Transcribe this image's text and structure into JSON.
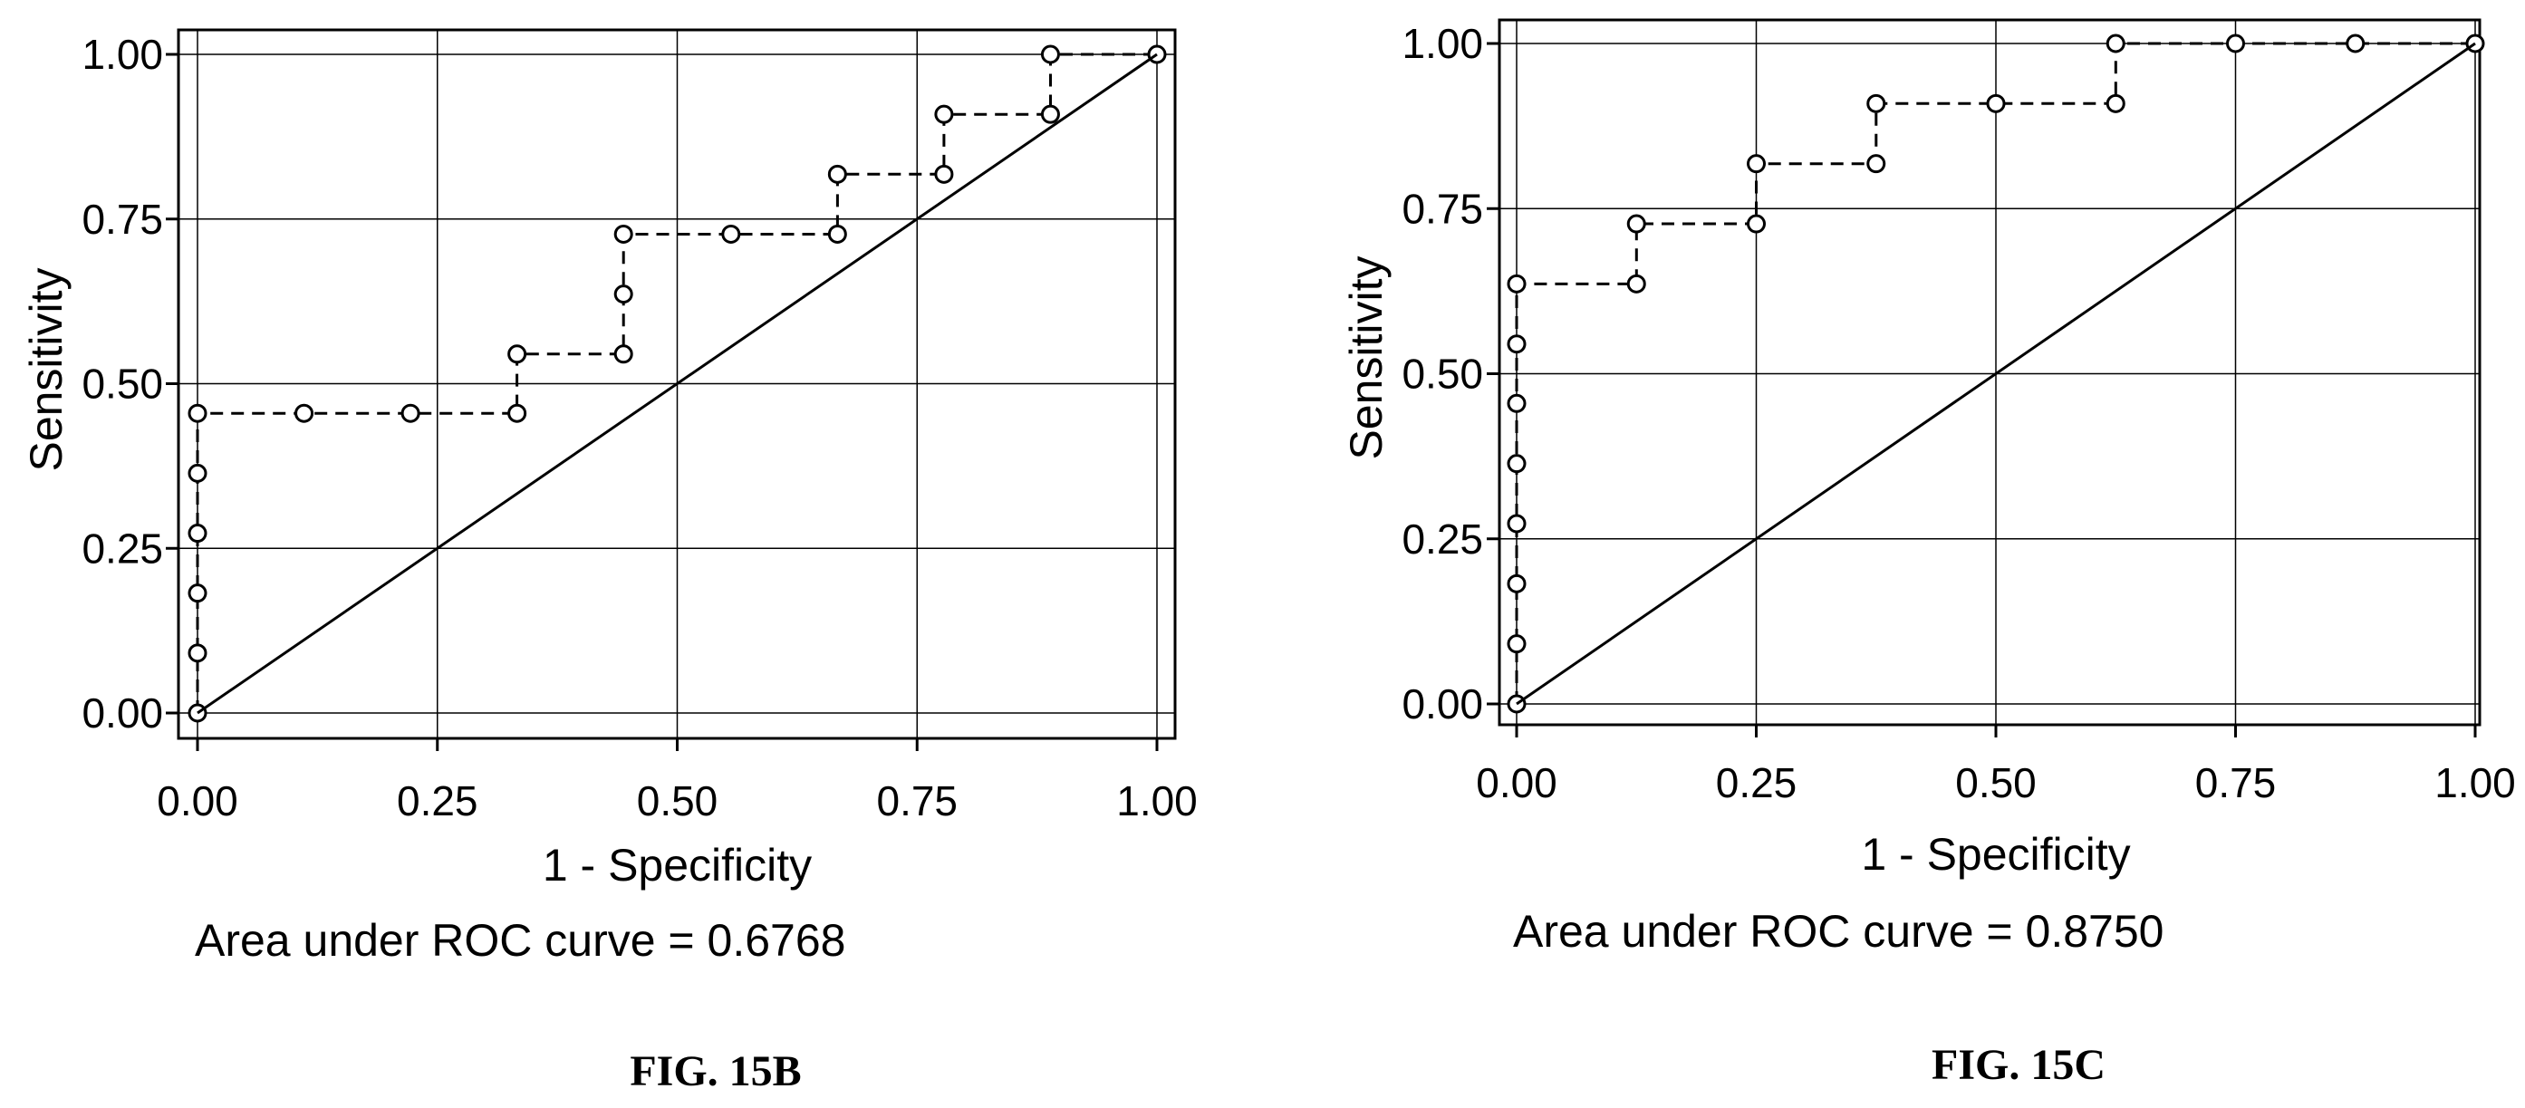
{
  "chart_data": [
    {
      "type": "line",
      "xlabel": "1 - Specificity",
      "ylabel": "Sensitivity",
      "xlim": [
        0,
        1
      ],
      "ylim": [
        0,
        1
      ],
      "grid": true,
      "x_ticks": [
        "0.00",
        "0.25",
        "0.50",
        "0.75",
        "1.00"
      ],
      "y_ticks": [
        "0.00",
        "0.25",
        "0.50",
        "0.75",
        "1.00"
      ],
      "annotation": "Area under ROC curve = 0.6768",
      "caption": "FIG. 15B",
      "series": [
        {
          "style": "dashed-step-with-circles",
          "x": [
            0,
            0,
            0,
            0,
            0,
            0,
            0.111,
            0.222,
            0.333,
            0.333,
            0.444,
            0.444,
            0.444,
            0.556,
            0.667,
            0.667,
            0.778,
            0.778,
            0.889,
            0.889,
            1.0
          ],
          "y": [
            0,
            0.091,
            0.182,
            0.273,
            0.364,
            0.455,
            0.455,
            0.455,
            0.455,
            0.545,
            0.545,
            0.636,
            0.727,
            0.727,
            0.727,
            0.818,
            0.818,
            0.909,
            0.909,
            1.0,
            1.0
          ]
        },
        {
          "style": "solid-reference",
          "x": [
            0,
            1
          ],
          "y": [
            0,
            1
          ]
        }
      ]
    },
    {
      "type": "line",
      "xlabel": "1 - Specificity",
      "ylabel": "Sensitivity",
      "xlim": [
        0,
        1
      ],
      "ylim": [
        0,
        1
      ],
      "grid": true,
      "x_ticks": [
        "0.00",
        "0.25",
        "0.50",
        "0.75",
        "1.00"
      ],
      "y_ticks": [
        "0.00",
        "0.25",
        "0.50",
        "0.75",
        "1.00"
      ],
      "annotation": "Area under ROC curve = 0.8750",
      "caption": "FIG. 15C",
      "series": [
        {
          "style": "dashed-step-with-circles",
          "x": [
            0,
            0,
            0,
            0,
            0,
            0,
            0,
            0,
            0.125,
            0.125,
            0.25,
            0.25,
            0.375,
            0.375,
            0.5,
            0.625,
            0.625,
            0.75,
            0.875,
            1.0
          ],
          "y": [
            0,
            0.091,
            0.182,
            0.273,
            0.364,
            0.455,
            0.545,
            0.636,
            0.636,
            0.727,
            0.727,
            0.818,
            0.818,
            0.909,
            0.909,
            0.909,
            1.0,
            1.0,
            1.0,
            1.0
          ]
        },
        {
          "style": "solid-reference",
          "x": [
            0,
            1
          ],
          "y": [
            0,
            1
          ]
        }
      ]
    }
  ]
}
